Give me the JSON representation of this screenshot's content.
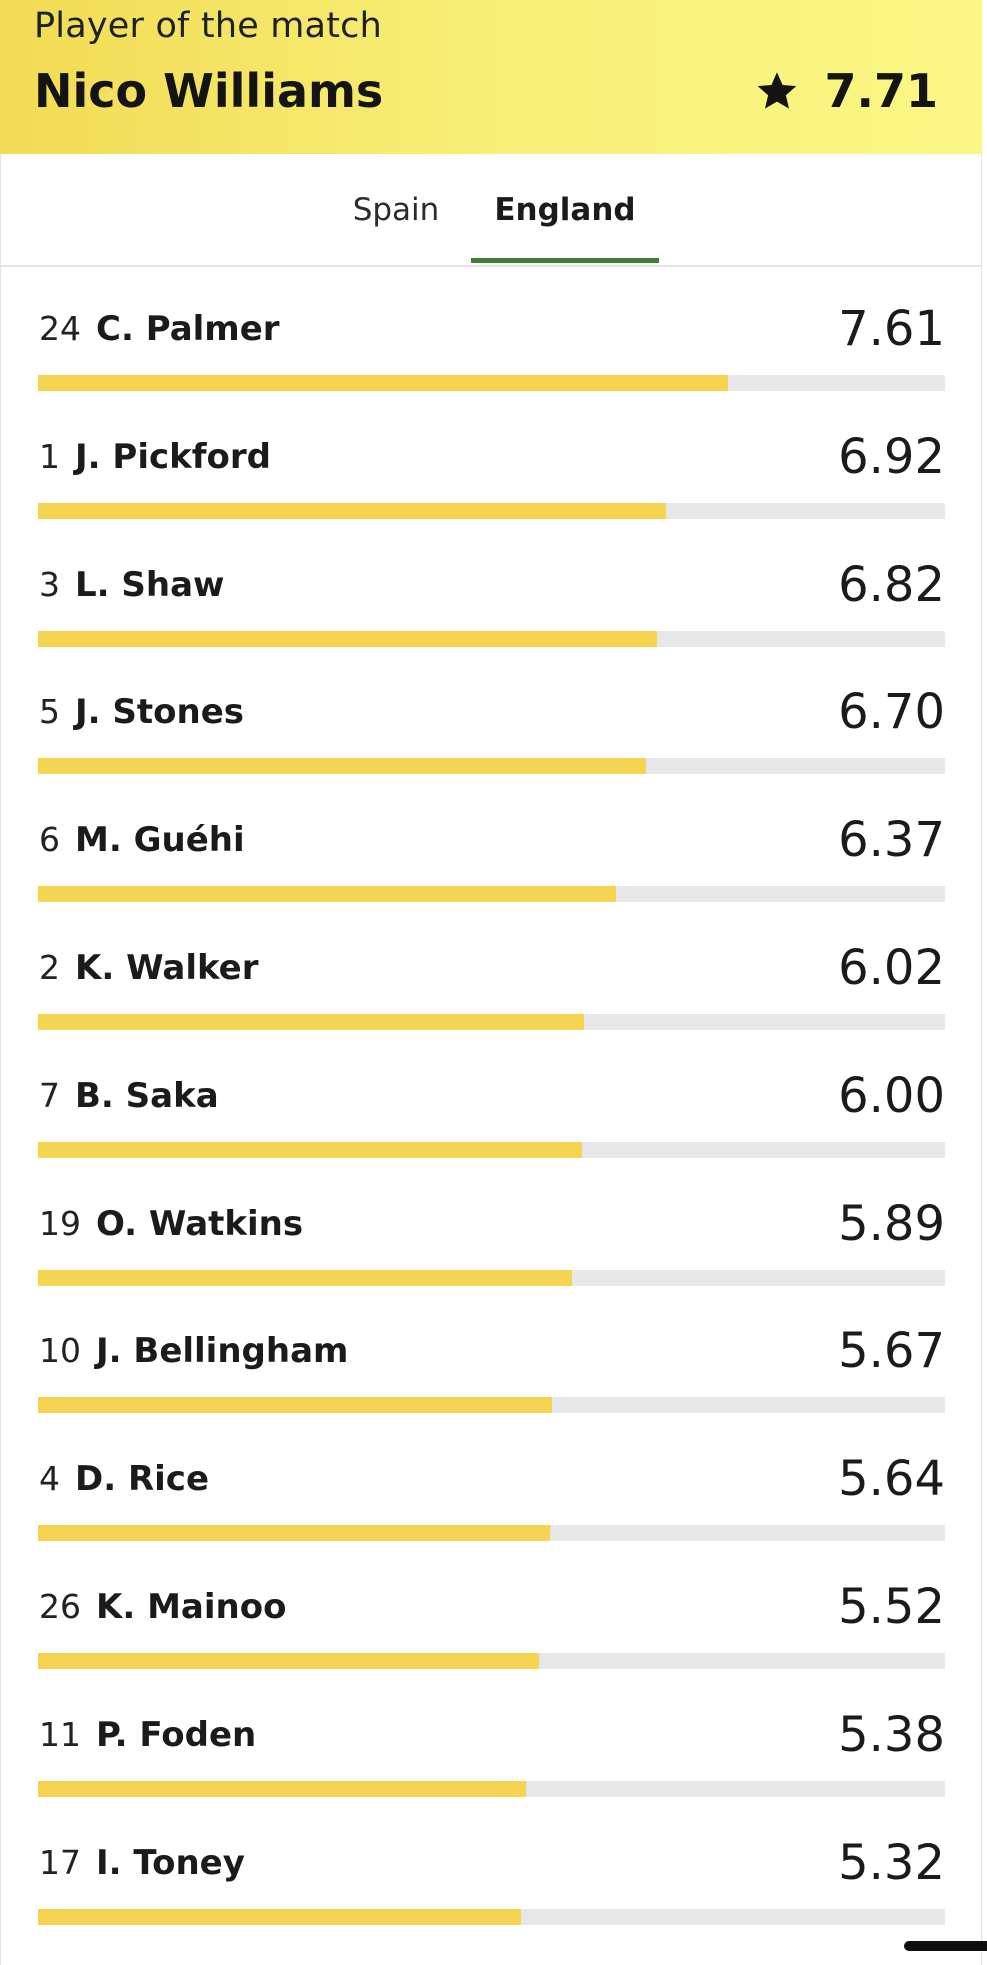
{
  "player_of_the_match": {
    "label": "Player of the match",
    "name": "Nico Williams",
    "rating": "7.71",
    "icon": "star-icon"
  },
  "tabs": [
    {
      "label": "Spain",
      "active": false
    },
    {
      "label": "England",
      "active": true
    }
  ],
  "colors": {
    "bar_fill": "#f5d452",
    "bar_track": "#e6e7e9",
    "tab_active_underline": "#407f35",
    "banner_gradient_start": "#f2db55",
    "banner_gradient_end": "#faf784"
  },
  "rating_scale_max": 10,
  "players": [
    {
      "number": "24",
      "name": "C. Palmer",
      "rating": "7.61"
    },
    {
      "number": "1",
      "name": "J. Pickford",
      "rating": "6.92"
    },
    {
      "number": "3",
      "name": "L. Shaw",
      "rating": "6.82"
    },
    {
      "number": "5",
      "name": "J. Stones",
      "rating": "6.70"
    },
    {
      "number": "6",
      "name": "M. Guéhi",
      "rating": "6.37"
    },
    {
      "number": "2",
      "name": "K. Walker",
      "rating": "6.02"
    },
    {
      "number": "7",
      "name": "B. Saka",
      "rating": "6.00"
    },
    {
      "number": "19",
      "name": "O. Watkins",
      "rating": "5.89"
    },
    {
      "number": "10",
      "name": "J. Bellingham",
      "rating": "5.67"
    },
    {
      "number": "4",
      "name": "D. Rice",
      "rating": "5.64"
    },
    {
      "number": "26",
      "name": "K. Mainoo",
      "rating": "5.52"
    },
    {
      "number": "11",
      "name": "P. Foden",
      "rating": "5.38"
    },
    {
      "number": "17",
      "name": "I. Toney",
      "rating": "5.32"
    }
  ]
}
